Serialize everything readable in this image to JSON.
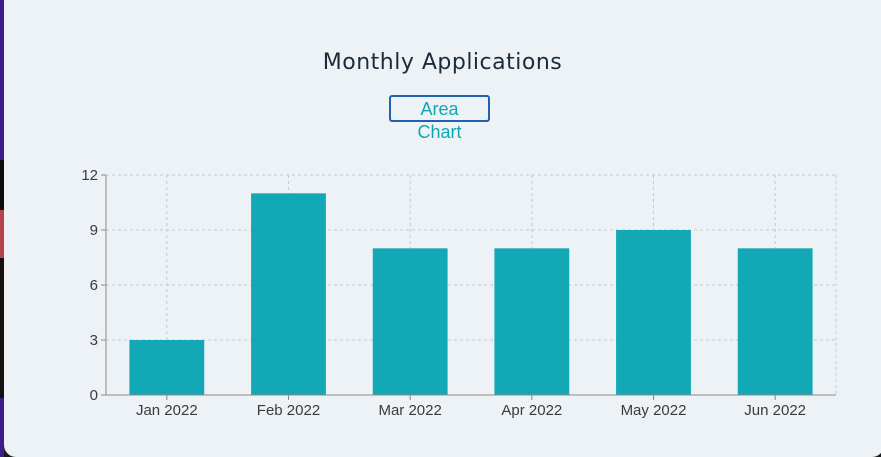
{
  "header": {
    "title": "Monthly Applications",
    "toggle_label": "Area Chart"
  },
  "colors": {
    "bar": "#13a8b5",
    "grid": "#c5c9ce",
    "axis": "#8a8a8a",
    "card_background": "#edf2f7",
    "toggle_border": "#1f63b0",
    "toggle_text": "#12a6b1"
  },
  "chart_data": {
    "type": "bar",
    "categories": [
      "Jan 2022",
      "Feb 2022",
      "Mar 2022",
      "Apr 2022",
      "May 2022",
      "Jun 2022"
    ],
    "values": [
      3,
      11,
      8,
      8,
      9,
      8
    ],
    "ylim": [
      0,
      12
    ],
    "yticks": [
      0,
      3,
      6,
      9,
      12
    ],
    "grid": true,
    "xlabel": "",
    "ylabel": ""
  }
}
